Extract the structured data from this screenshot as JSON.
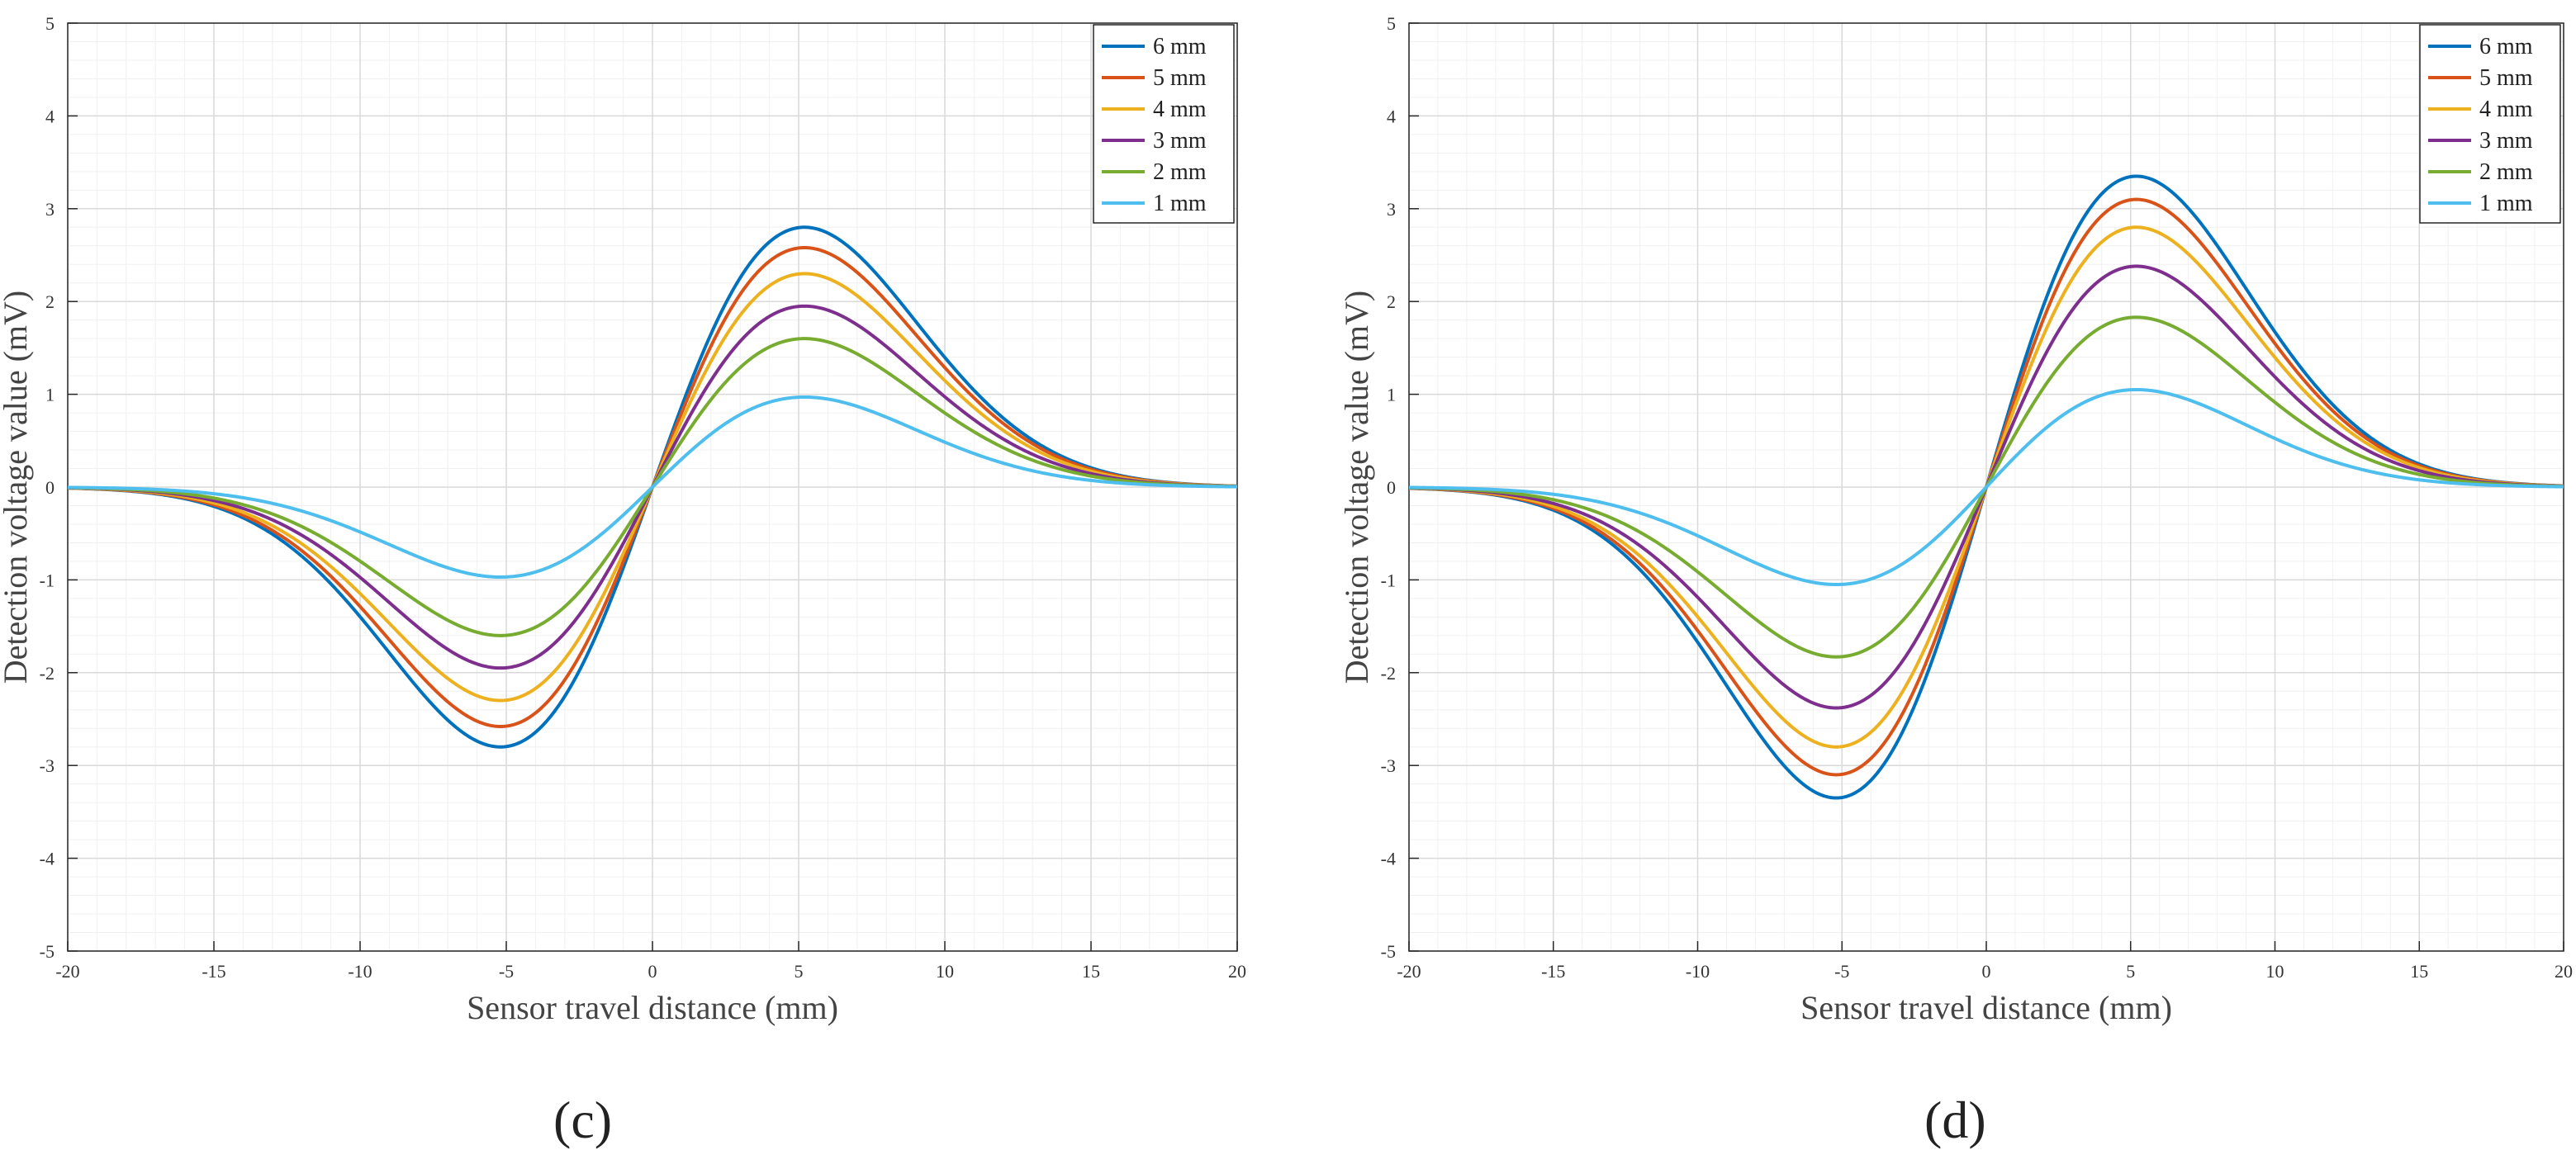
{
  "chart_data": [
    {
      "type": "line",
      "panel_label": "(c)",
      "xlabel": "Sensor travel distance (mm)",
      "ylabel": "Detection voltage value (mV)",
      "xlim": [
        -20,
        20
      ],
      "ylim": [
        -5,
        5
      ],
      "xticks": [
        -20,
        -15,
        -10,
        -5,
        0,
        5,
        10,
        15,
        20
      ],
      "yticks": [
        -5,
        -4,
        -3,
        -2,
        -1,
        0,
        1,
        2,
        3,
        4,
        5
      ],
      "grid": true,
      "legend": "top-right",
      "peak_position_mm": 5.2,
      "curve_width_mm": 4.6,
      "series": [
        {
          "name": "6 mm",
          "color": "#0072BD",
          "peak": 2.8
        },
        {
          "name": "5 mm",
          "color": "#D95319",
          "peak": 2.58
        },
        {
          "name": "4 mm",
          "color": "#EDB120",
          "peak": 2.3
        },
        {
          "name": "3 mm",
          "color": "#7E2F8E",
          "peak": 1.95
        },
        {
          "name": "2 mm",
          "color": "#77AC30",
          "peak": 1.6
        },
        {
          "name": "1 mm",
          "color": "#4DBEEE",
          "peak": 0.97
        }
      ]
    },
    {
      "type": "line",
      "panel_label": "(d)",
      "xlabel": "Sensor travel distance (mm)",
      "ylabel": "Detection voltage value (mV)",
      "xlim": [
        -20,
        20
      ],
      "ylim": [
        -5,
        5
      ],
      "xticks": [
        -20,
        -15,
        -10,
        -5,
        0,
        5,
        10,
        15,
        20
      ],
      "yticks": [
        -5,
        -4,
        -3,
        -2,
        -1,
        0,
        1,
        2,
        3,
        4,
        5
      ],
      "grid": true,
      "legend": "top-right",
      "peak_position_mm": 5.2,
      "curve_width_mm": 4.2,
      "series": [
        {
          "name": "6 mm",
          "color": "#0072BD",
          "peak": 3.35
        },
        {
          "name": "5 mm",
          "color": "#D95319",
          "peak": 3.1
        },
        {
          "name": "4 mm",
          "color": "#EDB120",
          "peak": 2.8
        },
        {
          "name": "3 mm",
          "color": "#7E2F8E",
          "peak": 2.38
        },
        {
          "name": "2 mm",
          "color": "#77AC30",
          "peak": 1.83
        },
        {
          "name": "1 mm",
          "color": "#4DBEEE",
          "peak": 1.05
        }
      ]
    }
  ]
}
